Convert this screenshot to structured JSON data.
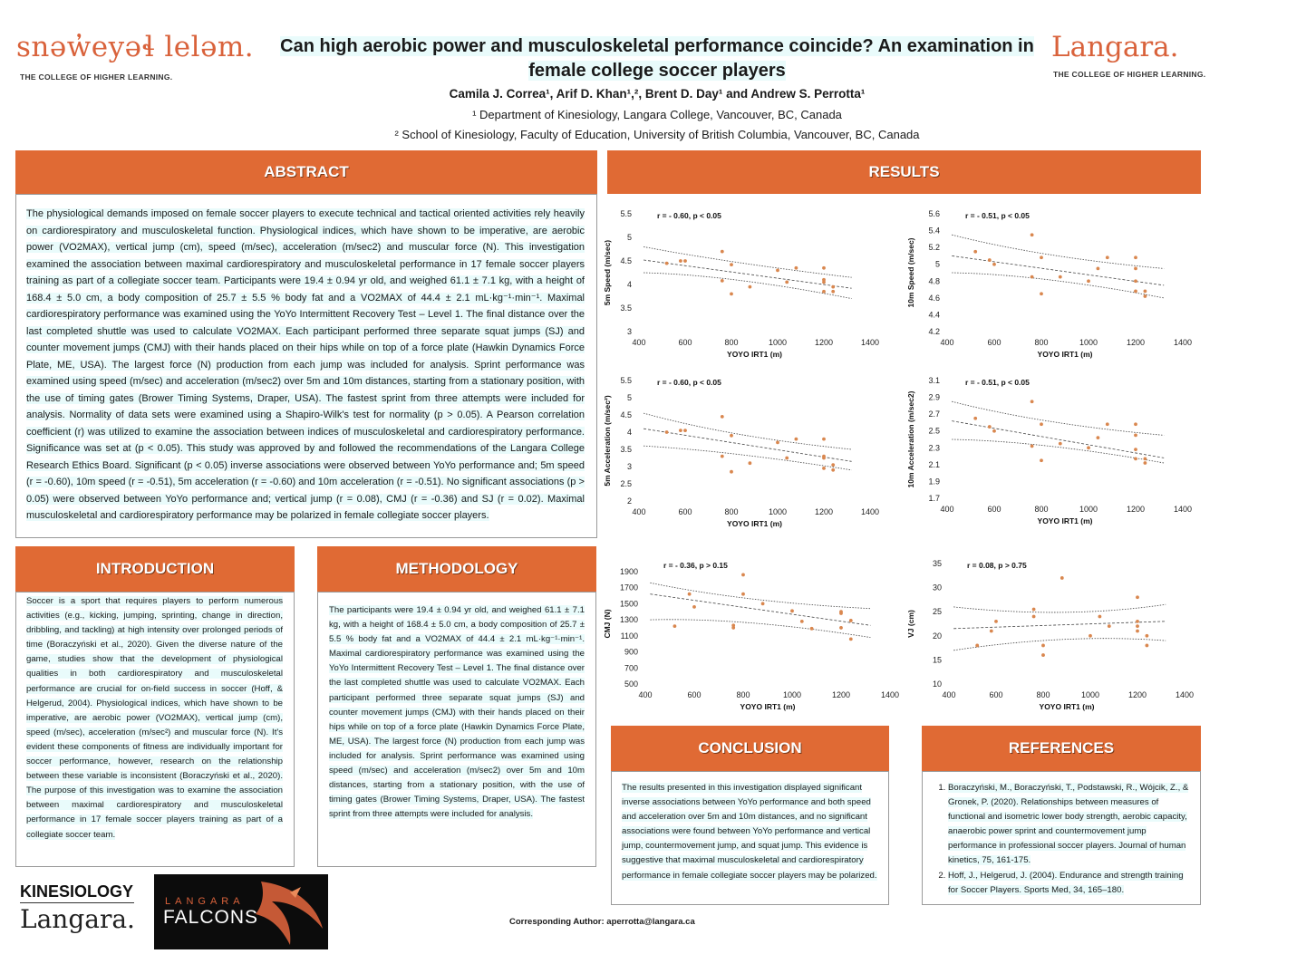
{
  "header": {
    "left_logo_title": "snəw̓eyəɬ leləm.",
    "left_logo_sub": "THE COLLEGE OF HIGHER LEARNING.",
    "right_logo_title": "Langara.",
    "right_logo_sub": "THE COLLEGE OF HIGHER LEARNING.",
    "title_line1": "Can high aerobic power and musculoskeletal performance coincide? An examination in",
    "title_line2": "female college soccer players",
    "authors": "Camila J. Correa¹, Arif D. Khan¹,², Brent D. Day¹ and Andrew S. Perrotta¹",
    "affiliation1": "¹ Department of Kinesiology, Langara College, Vancouver, BC, Canada",
    "affiliation2": "² School of Kinesiology, Faculty of Education, University of British Columbia, Vancouver, BC, Canada"
  },
  "abstract": {
    "heading": "ABSTRACT",
    "text": "The physiological demands imposed on female soccer players to execute technical and tactical oriented activities rely heavily on cardiorespiratory and musculoskeletal function. Physiological indices, which have shown to be imperative, are aerobic power (VO2MAX), vertical jump (cm), speed (m/sec), acceleration (m/sec2) and muscular force (N). This investigation examined the association between maximal cardiorespiratory and musculoskeletal performance in 17 female soccer players training as part of a collegiate soccer team. Participants were 19.4 ± 0.94 yr old, and weighed 61.1 ± 7.1 kg, with a height of 168.4 ± 5.0 cm, a body composition of 25.7 ± 5.5 % body fat and a VO2MAX of 44.4 ± 2.1 mL·kg⁻¹·min⁻¹. Maximal cardiorespiratory performance was examined using the YoYo Intermittent Recovery Test – Level 1. The final distance over the last completed shuttle was used to calculate VO2MAX. Each participant performed three separate squat jumps (SJ) and counter movement jumps (CMJ) with their hands placed on their hips while on top of a force plate (Hawkin Dynamics Force Plate, ME, USA). The largest force (N) production from each jump was included for analysis. Sprint performance was examined using speed (m/sec) and acceleration (m/sec2) over 5m and 10m distances, starting from a stationary position, with the use of timing gates (Brower Timing Systems, Draper, USA). The fastest sprint from three attempts were included for analysis. Normality of data sets were examined using a Shapiro-Wilk's test for normality (p > 0.05). A Pearson correlation coefficient (r) was utilized to examine the association between indices of musculoskeletal and cardiorespiratory performance. Significance was set at (p < 0.05). This study was approved by and followed the recommendations of the Langara College Research Ethics Board. Significant (p < 0.05) inverse associations were observed between YoYo performance and; 5m speed (r = -0.60), 10m speed (r = -0.51), 5m acceleration (r = -0.60) and 10m acceleration (r = -0.51). No significant associations (p > 0.05) were observed between YoYo performance and; vertical jump (r = 0.08), CMJ (r = -0.36) and SJ (r = 0.02). Maximal musculoskeletal and cardiorespiratory performance may be polarized in female collegiate soccer players."
  },
  "introduction": {
    "heading": "INTRODUCTION",
    "text": "Soccer is a sport that requires players to perform numerous activities (e.g., kicking, jumping, sprinting, change in direction, dribbling, and tackling) at high intensity over prolonged periods of time (Boraczyński et al., 2020). Given the diverse nature of the game, studies show that the development of physiological qualities in both cardiorespiratory and musculoskeletal performance are crucial for on-field success in soccer (Hoff, & Helgerud, 2004). Physiological indices, which have shown to be imperative, are aerobic power (VO2MAX), vertical jump (cm), speed (m/sec), acceleration (m/sec²) and muscular force (N). It's evident these components of fitness are individually important for soccer performance, however, research on the relationship between these variable is inconsistent (Boraczyński et al., 2020). The purpose of this investigation was to examine the association between maximal cardiorespiratory and musculoskeletal performance in 17 female soccer players training as part of a collegiate soccer team."
  },
  "methodology": {
    "heading": "METHODOLOGY",
    "text": "The participants were 19.4 ± 0.94 yr old, and weighed 61.1 ± 7.1 kg, with a height of 168.4 ± 5.0 cm, a body composition of 25.7 ± 5.5 % body fat and a VO2MAX of 44.4 ± 2.1 mL·kg⁻¹·min⁻¹. Maximal cardiorespiratory performance was examined using the YoYo Intermittent Recovery Test – Level 1. The final distance over the last completed shuttle was used to calculate VO2MAX. Each participant performed three separate squat jumps (SJ) and counter movement jumps (CMJ) with their hands placed on their hips while on top of a force plate (Hawkin Dynamics Force Plate, ME, USA). The largest force (N) production from each jump was included for analysis. Sprint performance was examined using speed (m/sec) and acceleration (m/sec2) over 5m and 10m distances, starting from a stationary position, with the use of timing gates (Brower Timing Systems, Draper, USA). The fastest sprint from three attempts were included for analysis."
  },
  "results": {
    "heading": "RESULTS"
  },
  "conclusion": {
    "heading": "CONCLUSION",
    "text": "The results presented in this investigation displayed significant inverse associations between YoYo performance and both speed and acceleration over 5m and 10m distances, and no significant associations were found between YoYo performance and vertical jump, countermovement jump, and squat jump. This evidence is suggestive that maximal musculoskeletal and cardiorespiratory performance in female collegiate soccer players may be polarized."
  },
  "references": {
    "heading": "REFERENCES",
    "items": [
      "Boraczyński, M., Boraczyński, T., Podstawski, R., Wójcik, Z., & Gronek, P. (2020). Relationships between measures of functional and isometric lower body strength, aerobic capacity, anaerobic power sprint and countermovement jump performance in professional soccer players. Journal of human kinetics, 75, 161-175.",
      "Hoff, J., Helgerud, J. (2004). Endurance and strength training for Soccer Players. Sports Med, 34, 165–180."
    ]
  },
  "footer": {
    "kinesiology": "KINESIOLOGY",
    "langara": "Langara.",
    "falcons_top": "LANGARA",
    "falcons_bottom": "FALCONS",
    "corresponding": "Corresponding Author: aperrotta@langara.ca"
  },
  "colors": {
    "accent": "#e06a34",
    "highlight": "#e9fbfb",
    "point": "#d9874f"
  },
  "chart_data": [
    {
      "type": "scatter",
      "annotation": "r = - 0.60,  p < 0.05",
      "xlabel": "YOYO IRT1 (m)",
      "ylabel": "5m Speed (m/sec)",
      "xlim": [
        400,
        1400
      ],
      "ylim": [
        3,
        5.5
      ],
      "xticks": [
        400,
        600,
        800,
        1000,
        1200,
        1400
      ],
      "yticks": [
        3,
        3.5,
        4,
        4.5,
        5,
        5.5
      ],
      "points": [
        [
          520,
          4.45
        ],
        [
          580,
          4.5
        ],
        [
          600,
          4.5
        ],
        [
          760,
          4.7
        ],
        [
          760,
          4.08
        ],
        [
          800,
          4.42
        ],
        [
          800,
          3.8
        ],
        [
          880,
          3.95
        ],
        [
          1000,
          4.3
        ],
        [
          1040,
          4.05
        ],
        [
          1080,
          4.35
        ],
        [
          1200,
          4.35
        ],
        [
          1200,
          4.1
        ],
        [
          1200,
          4.05
        ],
        [
          1200,
          3.85
        ],
        [
          1240,
          3.95
        ],
        [
          1240,
          3.85
        ]
      ],
      "fit": [
        [
          420,
          4.52
        ],
        [
          1320,
          3.92
        ]
      ],
      "ci_upper": [
        [
          420,
          4.8
        ],
        [
          800,
          4.45
        ],
        [
          1320,
          4.15
        ]
      ],
      "ci_lower": [
        [
          420,
          4.25
        ],
        [
          800,
          4.2
        ],
        [
          1320,
          3.7
        ]
      ]
    },
    {
      "type": "scatter",
      "annotation": "r = - 0.51,  p < 0.05",
      "xlabel": "YOYO IRT1 (m)",
      "ylabel": "10m Speed (m/sec)",
      "xlim": [
        400,
        1400
      ],
      "ylim": [
        4.2,
        5.6
      ],
      "xticks": [
        400,
        600,
        800,
        1000,
        1200,
        1400
      ],
      "yticks": [
        4.2,
        4.4,
        4.6,
        4.8,
        5,
        5.2,
        5.4,
        5.6
      ],
      "points": [
        [
          520,
          5.15
        ],
        [
          580,
          5.05
        ],
        [
          600,
          5.0
        ],
        [
          760,
          5.35
        ],
        [
          760,
          4.85
        ],
        [
          800,
          5.08
        ],
        [
          800,
          4.65
        ],
        [
          880,
          4.85
        ],
        [
          1000,
          4.8
        ],
        [
          1040,
          4.95
        ],
        [
          1080,
          5.08
        ],
        [
          1200,
          5.08
        ],
        [
          1200,
          4.95
        ],
        [
          1200,
          4.8
        ],
        [
          1200,
          4.68
        ],
        [
          1240,
          4.68
        ],
        [
          1240,
          4.62
        ]
      ],
      "fit": [
        [
          420,
          5.1
        ],
        [
          1320,
          4.75
        ]
      ],
      "ci_upper": [
        [
          420,
          5.35
        ],
        [
          800,
          5.08
        ],
        [
          1320,
          4.95
        ]
      ],
      "ci_lower": [
        [
          420,
          4.9
        ],
        [
          800,
          4.88
        ],
        [
          1320,
          4.6
        ]
      ]
    },
    {
      "type": "scatter",
      "annotation": "r = - 0.60,  p < 0.05",
      "xlabel": "YOYO IRT1 (m)",
      "ylabel": "5m Acceleration (m/sec²)",
      "xlim": [
        400,
        1400
      ],
      "ylim": [
        2,
        5.5
      ],
      "xticks": [
        400,
        600,
        800,
        1000,
        1200,
        1400
      ],
      "yticks": [
        2,
        2.5,
        3,
        3.5,
        4,
        4.5,
        5,
        5.5
      ],
      "points": [
        [
          520,
          4.0
        ],
        [
          580,
          4.05
        ],
        [
          600,
          4.05
        ],
        [
          760,
          4.45
        ],
        [
          760,
          3.3
        ],
        [
          800,
          3.9
        ],
        [
          800,
          2.85
        ],
        [
          880,
          3.1
        ],
        [
          1000,
          3.7
        ],
        [
          1040,
          3.25
        ],
        [
          1080,
          3.8
        ],
        [
          1200,
          3.8
        ],
        [
          1200,
          3.3
        ],
        [
          1200,
          3.25
        ],
        [
          1200,
          2.95
        ],
        [
          1240,
          3.05
        ],
        [
          1240,
          2.9
        ]
      ],
      "fit": [
        [
          420,
          4.1
        ],
        [
          1320,
          3.15
        ]
      ],
      "ci_upper": [
        [
          420,
          4.55
        ],
        [
          800,
          3.85
        ],
        [
          1320,
          3.5
        ]
      ],
      "ci_lower": [
        [
          420,
          3.6
        ],
        [
          800,
          3.45
        ],
        [
          1320,
          2.9
        ]
      ]
    },
    {
      "type": "scatter",
      "annotation": "r = - 0.51,  p < 0.05",
      "xlabel": "YOYO IRT1 (m)",
      "ylabel": "10m Acceleration (m/sec2)",
      "xlim": [
        400,
        1400
      ],
      "ylim": [
        1.7,
        3.1
      ],
      "xticks": [
        400,
        600,
        800,
        1000,
        1200,
        1400
      ],
      "yticks": [
        1.7,
        1.9,
        2.1,
        2.3,
        2.5,
        2.7,
        2.9,
        3.1
      ],
      "points": [
        [
          520,
          2.65
        ],
        [
          580,
          2.55
        ],
        [
          600,
          2.5
        ],
        [
          760,
          2.85
        ],
        [
          760,
          2.32
        ],
        [
          800,
          2.58
        ],
        [
          800,
          2.15
        ],
        [
          880,
          2.35
        ],
        [
          1000,
          2.3
        ],
        [
          1040,
          2.42
        ],
        [
          1080,
          2.58
        ],
        [
          1200,
          2.58
        ],
        [
          1200,
          2.45
        ],
        [
          1200,
          2.28
        ],
        [
          1200,
          2.17
        ],
        [
          1240,
          2.17
        ],
        [
          1240,
          2.12
        ]
      ],
      "fit": [
        [
          420,
          2.62
        ],
        [
          1320,
          2.18
        ]
      ],
      "ci_upper": [
        [
          420,
          2.85
        ],
        [
          800,
          2.58
        ],
        [
          1320,
          2.45
        ]
      ],
      "ci_lower": [
        [
          420,
          2.4
        ],
        [
          800,
          2.38
        ],
        [
          1320,
          2.12
        ]
      ]
    },
    {
      "type": "scatter",
      "annotation": "r = - 0.36,  p > 0.15",
      "xlabel": "YOYO IRT1 (m)",
      "ylabel": "CMJ (N)",
      "xlim": [
        400,
        1400
      ],
      "ylim": [
        500,
        2000
      ],
      "xticks": [
        400,
        600,
        800,
        1000,
        1200,
        1400
      ],
      "yticks": [
        500,
        700,
        900,
        1100,
        1300,
        1500,
        1700,
        1900
      ],
      "points": [
        [
          520,
          1220
        ],
        [
          580,
          1620
        ],
        [
          600,
          1460
        ],
        [
          760,
          1230
        ],
        [
          760,
          1200
        ],
        [
          800,
          1860
        ],
        [
          800,
          1620
        ],
        [
          880,
          1500
        ],
        [
          1000,
          1410
        ],
        [
          1040,
          1280
        ],
        [
          1080,
          1190
        ],
        [
          1200,
          1400
        ],
        [
          1200,
          1380
        ],
        [
          1200,
          1200
        ],
        [
          1240,
          1290
        ],
        [
          1240,
          1060
        ]
      ],
      "fit": [
        [
          420,
          1620
        ],
        [
          1320,
          1230
        ]
      ],
      "ci_upper": [
        [
          420,
          1760
        ],
        [
          800,
          1520
        ],
        [
          1320,
          1440
        ]
      ],
      "ci_lower": [
        [
          420,
          1300
        ],
        [
          800,
          1330
        ],
        [
          1320,
          1080
        ]
      ]
    },
    {
      "type": "scatter",
      "annotation": "r = 0.08,  p > 0.75",
      "xlabel": "YOYO IRT1 (m)",
      "ylabel": "VJ (cm)",
      "xlim": [
        400,
        1400
      ],
      "ylim": [
        10,
        35
      ],
      "xticks": [
        400,
        600,
        800,
        1000,
        1200,
        1400
      ],
      "yticks": [
        10,
        15,
        20,
        25,
        30,
        35
      ],
      "points": [
        [
          520,
          18
        ],
        [
          580,
          21
        ],
        [
          600,
          23
        ],
        [
          760,
          25.5
        ],
        [
          760,
          24
        ],
        [
          800,
          18
        ],
        [
          800,
          16
        ],
        [
          880,
          32
        ],
        [
          1000,
          20
        ],
        [
          1040,
          24
        ],
        [
          1080,
          22
        ],
        [
          1200,
          28
        ],
        [
          1200,
          23
        ],
        [
          1200,
          22
        ],
        [
          1200,
          21
        ],
        [
          1240,
          20
        ],
        [
          1240,
          18
        ]
      ],
      "fit": [
        [
          420,
          21.5
        ],
        [
          1320,
          23
        ]
      ],
      "ci_upper": [
        [
          420,
          26
        ],
        [
          900,
          23.5
        ],
        [
          1320,
          26.5
        ]
      ],
      "ci_lower": [
        [
          420,
          17
        ],
        [
          900,
          20.5
        ],
        [
          1320,
          19
        ]
      ]
    }
  ]
}
